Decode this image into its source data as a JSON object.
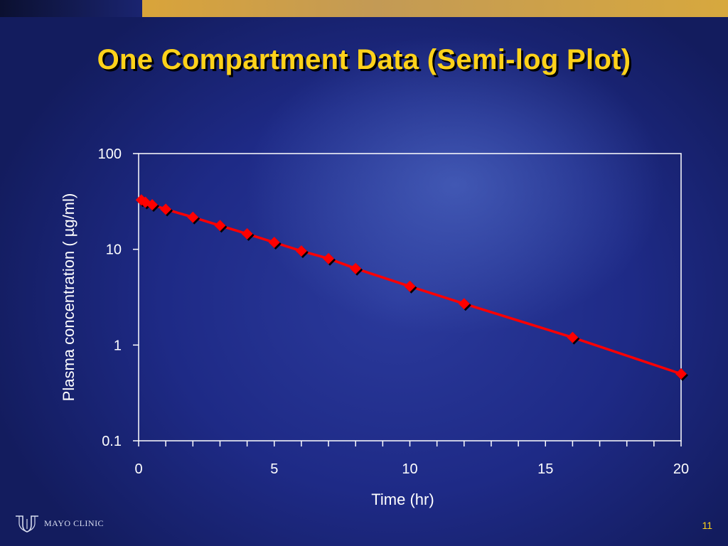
{
  "slide": {
    "title": "One Compartment Data (Semi-log Plot)",
    "page_number": "11",
    "logo_text": "MAYO CLINIC"
  },
  "colors": {
    "title": "#ffd21a",
    "series": "#ff0000",
    "axis": "#ffffff"
  },
  "chart_data": {
    "type": "line",
    "xlabel": "Time (hr)",
    "ylabel": "Plasma concentration ( µg/ml)",
    "xlim": [
      0,
      20
    ],
    "ylim": [
      0.1,
      100
    ],
    "yscale": "log",
    "x_ticks": [
      0,
      5,
      10,
      15,
      20
    ],
    "x_tick_labels": [
      "0",
      "5",
      "10",
      "15",
      "20"
    ],
    "y_ticks": [
      0.1,
      1,
      10,
      100
    ],
    "y_tick_labels": [
      "0.1",
      "1",
      "10",
      "100"
    ],
    "grid": false,
    "series": [
      {
        "marker": "diamond",
        "x": [
          0.1,
          0.25,
          0.5,
          1,
          2,
          3,
          4,
          5,
          6,
          7,
          8,
          10,
          12,
          16,
          20
        ],
        "y": [
          32.8,
          31.0,
          29.2,
          26.2,
          21.6,
          17.7,
          14.5,
          11.8,
          9.6,
          8.0,
          6.3,
          4.1,
          2.7,
          1.2,
          0.5
        ]
      }
    ]
  }
}
